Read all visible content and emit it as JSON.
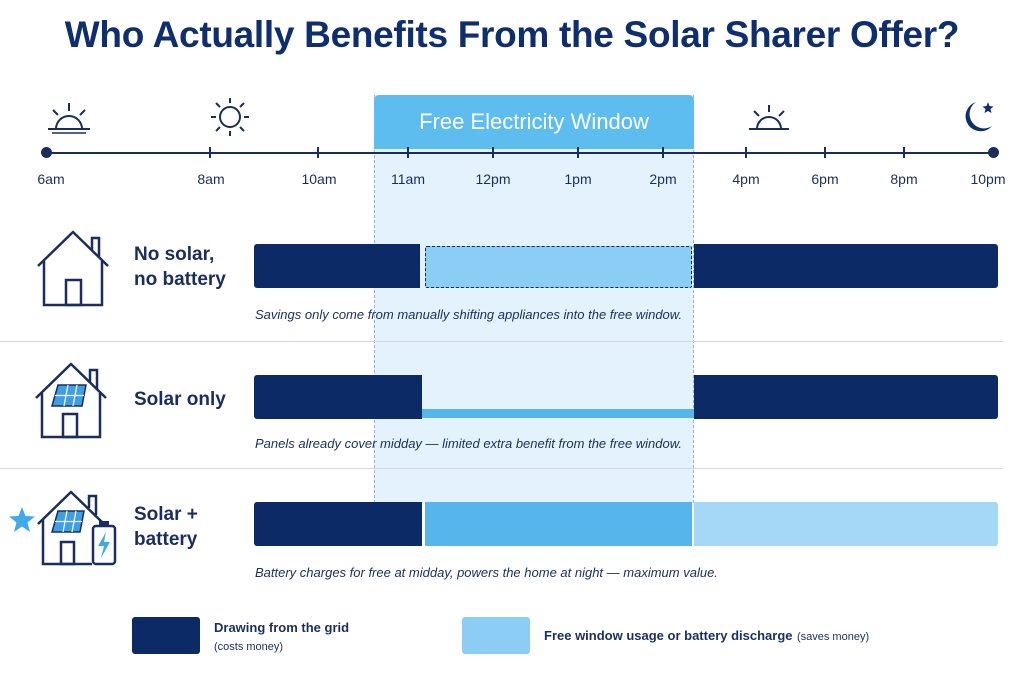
{
  "title": "Who Actually Benefits From the Solar Sharer Offer?",
  "window_label": "Free Electricity Window",
  "time_labels": [
    "6am",
    "8am",
    "10am",
    "11am",
    "12pm",
    "1pm",
    "2pm",
    "4pm",
    "6pm",
    "8pm",
    "10pm"
  ],
  "rows": [
    {
      "label_line1": "No solar,",
      "label_line2": "no battery",
      "note": "Savings only come from manually shifting appliances into the free window."
    },
    {
      "label_line1": "Solar only",
      "label_line2": "",
      "note": "Panels already cover midday — limited extra benefit from the free window."
    },
    {
      "label_line1": "Solar +",
      "label_line2": "battery",
      "note": "Battery charges for free at midday, powers the home at night — maximum value."
    }
  ],
  "legend": {
    "grid_label": "Drawing from the grid",
    "grid_sub": "(costs money)",
    "free_label": "Free window usage or battery discharge",
    "free_sub": "(saves money)"
  },
  "colors": {
    "grid": "#0c2a66",
    "free_window": "#8ccdf5",
    "battery_charge": "#56b6ec",
    "battery_discharge": "#a5d8f7",
    "window_header": "#5dbdee",
    "title": "#0e2e6e"
  }
}
